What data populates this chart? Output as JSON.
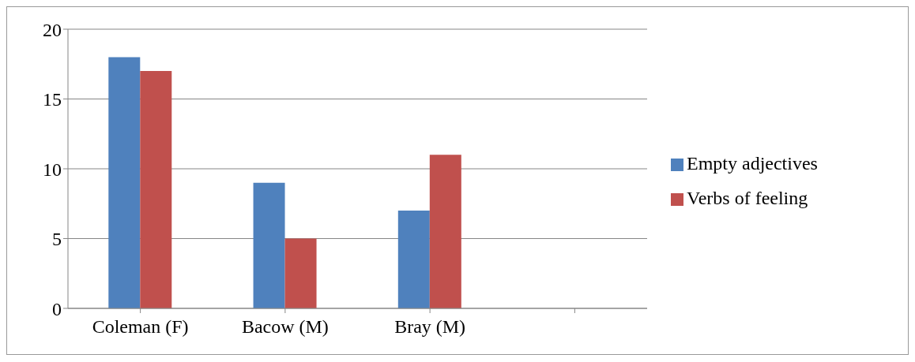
{
  "chart_data": {
    "type": "bar",
    "categories": [
      "Coleman (F)",
      "Bacow (M)",
      "Bray (M)",
      null
    ],
    "series": [
      {
        "name": "Empty adjectives",
        "color": "#4f81bd",
        "values": [
          18,
          9,
          7,
          null
        ]
      },
      {
        "name": "Verbs of feeling",
        "color": "#c0504d",
        "values": [
          17,
          5,
          11,
          null
        ]
      }
    ],
    "ylim": [
      0,
      20
    ],
    "yticks": [
      0,
      5,
      10,
      15,
      20
    ],
    "grid": "y",
    "legend": "right"
  }
}
